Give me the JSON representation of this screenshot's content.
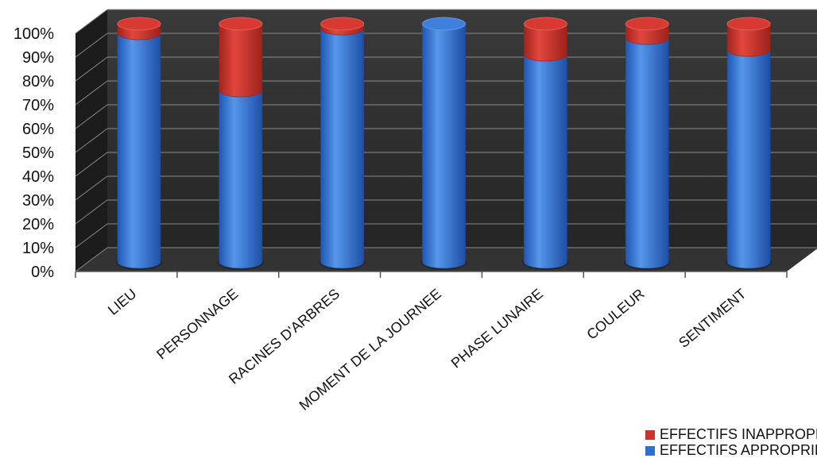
{
  "chart_data": {
    "type": "bar",
    "stacked": true,
    "percent": true,
    "categories": [
      "LIEU",
      "PERSONNAGE",
      "RACINES D'ARBRES",
      "MOMENT DE LA JOURNEE",
      "PHASE LUNAIRE",
      "COULEUR",
      "SENTIMENT"
    ],
    "series": [
      {
        "name": "EFFECTIFS APPROPRIES",
        "values": [
          96,
          72,
          98,
          100,
          87,
          94,
          89
        ],
        "color": "#2f6fd0"
      },
      {
        "name": "EFFECTIFS INAPPROPRIES",
        "values": [
          4,
          28,
          2,
          0,
          13,
          6,
          11
        ],
        "color": "#c8342c"
      }
    ],
    "y_ticks": [
      "0%",
      "10%",
      "20%",
      "30%",
      "40%",
      "50%",
      "60%",
      "70%",
      "80%",
      "90%",
      "100%"
    ],
    "ylim": [
      0,
      100
    ],
    "grid": true,
    "background": "#2b2b2b",
    "legend_position": "bottom-right"
  }
}
